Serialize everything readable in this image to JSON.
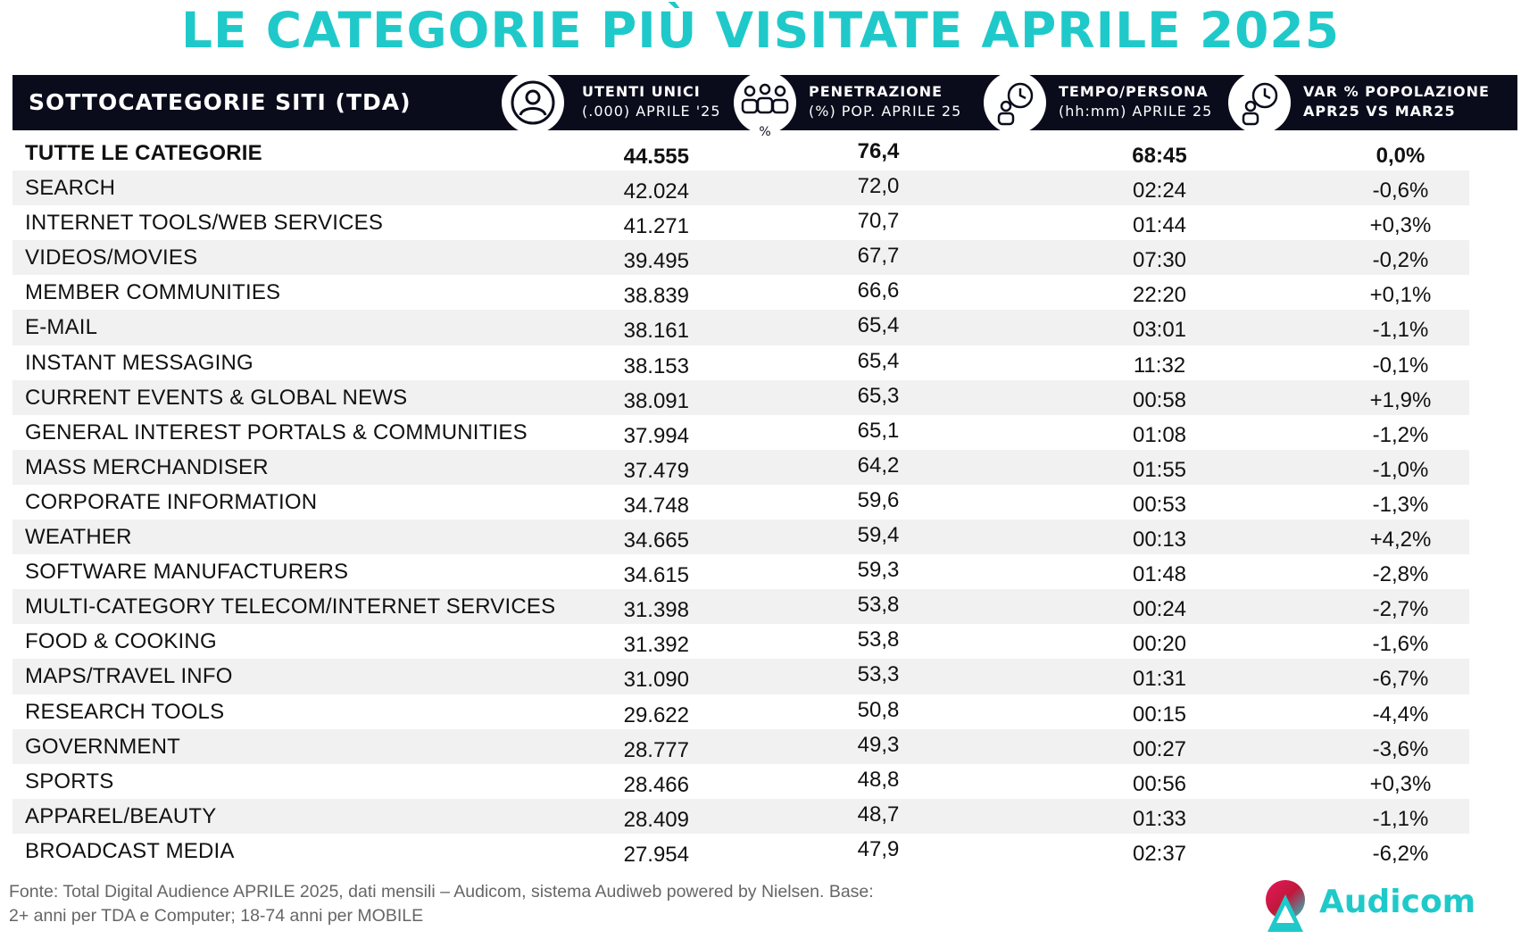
{
  "title": "LE CATEGORIE PIÙ VISITATE APRILE 2025",
  "header": {
    "main": "SOTTOCATEGORIE SITI  (TDA)",
    "columns": [
      {
        "line1": "UTENTI UNICI",
        "line2": "(.000) APRILE '25",
        "icon": "user-icon"
      },
      {
        "line1": "PENETRAZIONE",
        "line2": "(%) POP. APRILE 25",
        "icon": "population-icon",
        "badge": "%"
      },
      {
        "line1": "TEMPO/PERSONA",
        "line2": "(hh:mm) APRILE 25",
        "icon": "person-clock-icon"
      },
      {
        "line1": "VAR % POPOLAZIONE",
        "line2": "APR25 VS MAR25",
        "icon": "person-clock-icon"
      }
    ]
  },
  "rows": [
    {
      "cat": "TUTTE LE CATEGORIE",
      "users": "44.555",
      "pen": "76,4",
      "time": "68:45",
      "var": "0,0%"
    },
    {
      "cat": "SEARCH",
      "users": "42.024",
      "pen": "72,0",
      "time": "02:24",
      "var": "-0,6%"
    },
    {
      "cat": "INTERNET TOOLS/WEB SERVICES",
      "users": "41.271",
      "pen": "70,7",
      "time": "01:44",
      "var": "+0,3%"
    },
    {
      "cat": "VIDEOS/MOVIES",
      "users": "39.495",
      "pen": "67,7",
      "time": "07:30",
      "var": "-0,2%"
    },
    {
      "cat": "MEMBER COMMUNITIES",
      "users": "38.839",
      "pen": "66,6",
      "time": "22:20",
      "var": "+0,1%"
    },
    {
      "cat": "E-MAIL",
      "users": "38.161",
      "pen": "65,4",
      "time": "03:01",
      "var": "-1,1%"
    },
    {
      "cat": "INSTANT MESSAGING",
      "users": "38.153",
      "pen": "65,4",
      "time": "11:32",
      "var": "-0,1%"
    },
    {
      "cat": "CURRENT EVENTS & GLOBAL NEWS",
      "users": "38.091",
      "pen": "65,3",
      "time": "00:58",
      "var": "+1,9%"
    },
    {
      "cat": "GENERAL INTEREST PORTALS & COMMUNITIES",
      "users": "37.994",
      "pen": "65,1",
      "time": "01:08",
      "var": "-1,2%"
    },
    {
      "cat": "MASS MERCHANDISER",
      "users": "37.479",
      "pen": "64,2",
      "time": "01:55",
      "var": "-1,0%"
    },
    {
      "cat": "CORPORATE INFORMATION",
      "users": "34.748",
      "pen": "59,6",
      "time": "00:53",
      "var": "-1,3%"
    },
    {
      "cat": "WEATHER",
      "users": "34.665",
      "pen": "59,4",
      "time": "00:13",
      "var": "+4,2%"
    },
    {
      "cat": "SOFTWARE MANUFACTURERS",
      "users": "34.615",
      "pen": "59,3",
      "time": "01:48",
      "var": "-2,8%"
    },
    {
      "cat": "MULTI-CATEGORY TELECOM/INTERNET SERVICES",
      "users": "31.398",
      "pen": "53,8",
      "time": "00:24",
      "var": "-2,7%"
    },
    {
      "cat": "FOOD & COOKING",
      "users": "31.392",
      "pen": "53,8",
      "time": "00:20",
      "var": "-1,6%"
    },
    {
      "cat": "MAPS/TRAVEL INFO",
      "users": "31.090",
      "pen": "53,3",
      "time": "01:31",
      "var": "-6,7%"
    },
    {
      "cat": "RESEARCH TOOLS",
      "users": "29.622",
      "pen": "50,8",
      "time": "00:15",
      "var": "-4,4%"
    },
    {
      "cat": "GOVERNMENT",
      "users": "28.777",
      "pen": "49,3",
      "time": "00:27",
      "var": "-3,6%"
    },
    {
      "cat": "SPORTS",
      "users": "28.466",
      "pen": "48,8",
      "time": "00:56",
      "var": "+0,3%"
    },
    {
      "cat": "APPAREL/BEAUTY",
      "users": "28.409",
      "pen": "48,7",
      "time": "01:33",
      "var": "-1,1%"
    },
    {
      "cat": "BROADCAST MEDIA",
      "users": "27.954",
      "pen": "47,9",
      "time": "02:37",
      "var": "-6,2%"
    }
  ],
  "footer": {
    "line1": "Fonte: Total Digital Audience APRILE 2025, dati mensili – Audicom, sistema Audiweb powered by Nielsen. Base:",
    "line2": "2+ anni per TDA e Computer; 18-74 anni per MOBILE"
  },
  "logo": {
    "text": "Audicom",
    "icon": "audicom-logo-icon"
  },
  "colors": {
    "title": "#20c9c9",
    "header_bg": "#0a0c1c",
    "stripe": "#f1f1f1"
  }
}
